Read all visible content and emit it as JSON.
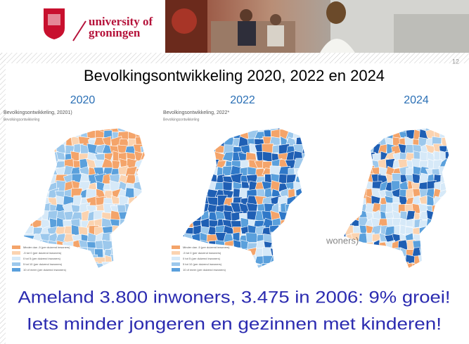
{
  "header": {
    "logo": [
      "university of",
      "groningen"
    ]
  },
  "slide": {
    "title": "Bevolkingsontwikkeling 2020, 2022 en 2024",
    "page_number": "12"
  },
  "maps": [
    {
      "year": "2020",
      "caption": "Bevolkingsontwikkeling, 20201)",
      "subtitle": "Bevolkingsontwikkeling",
      "legend": [
        "Minder dan -5 (per duizend inwoners)",
        "-5 tot 0 (per duizend inwoners)",
        "0 tot 5 (per duizend inwoners)",
        "5 tot 10 (per duizend inwoners)",
        "10 of meer (per duizend inwoners)"
      ]
    },
    {
      "year": "2022",
      "caption": "Bevolkingsontwikkeling, 2022*",
      "subtitle": "Bevolkingsontwikkeling",
      "legend": [
        "Minder dan -5 (per duizend inwoners)",
        "-5 tot 0 (per duizend inwoners)",
        "0 tot 5 (per duizend inwoners)",
        "5 tot 10 (per duizend inwoners)",
        "10 of meer (per duizend inwoners)"
      ]
    },
    {
      "year": "2024",
      "annotation": "woners)"
    }
  ],
  "footer": [
    "Ameland 3.800 inwoners, 3.475 in 2006: 9% groei!",
    "Iets minder jongeren en gezinnen met kinderen!"
  ]
}
